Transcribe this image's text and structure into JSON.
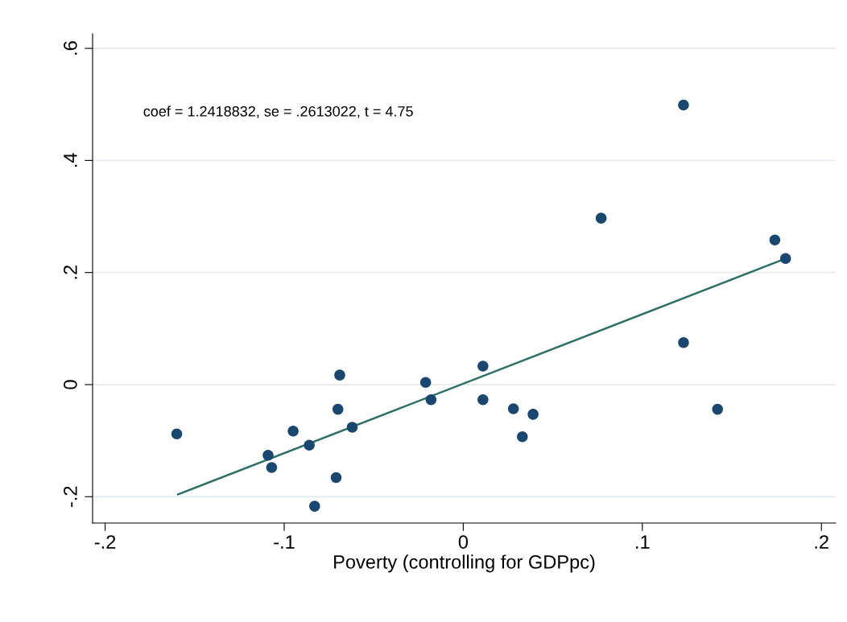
{
  "chart_data": {
    "type": "scatter",
    "xlabel": "Poverty (controlling for GDPpc)",
    "annotations": [
      "coef = 1.2418832, se = .2613022, t = 4.75"
    ],
    "series": [
      {
        "color": "#1a476f",
        "marker": "circle",
        "x": [
          -0.16,
          -0.109,
          -0.107,
          -0.095,
          -0.086,
          -0.083,
          -0.069,
          -0.07,
          -0.071,
          -0.062,
          -0.021,
          -0.018,
          0.011,
          0.011,
          0.028,
          0.033,
          0.039,
          0.077,
          0.123,
          0.123,
          0.142,
          0.174,
          0.18
        ],
        "values": [
          -0.088,
          -0.126,
          -0.148,
          -0.083,
          -0.108,
          -0.217,
          0.017,
          -0.044,
          -0.166,
          -0.076,
          0.004,
          -0.027,
          0.033,
          -0.027,
          -0.043,
          -0.093,
          -0.053,
          0.297,
          0.499,
          0.075,
          -0.044,
          0.258,
          0.225
        ]
      },
      {
        "type": "line",
        "color": "#2e7064",
        "marker": "none",
        "line_style": "solid",
        "x": [
          -0.1593,
          0.18
        ],
        "values": [
          -0.196,
          0.225
        ]
      }
    ],
    "xlim": [
      -0.207,
      0.208
    ],
    "ylim": [
      -0.247,
      0.626
    ],
    "xticks": [
      {
        "value": -0.2,
        "label": "-.2"
      },
      {
        "value": -0.1,
        "label": "-.1"
      },
      0,
      {
        "value": 0.1,
        "label": ".1"
      },
      {
        "value": 0.2,
        "label": ".2"
      }
    ],
    "yticks": [
      {
        "value": -0.2,
        "label": "-.2"
      },
      0,
      {
        "value": 0.2,
        "label": ".2"
      },
      {
        "value": 0.4,
        "label": ".4"
      },
      {
        "value": 0.6,
        "label": ".6"
      }
    ],
    "grid": "y",
    "legend": false
  }
}
